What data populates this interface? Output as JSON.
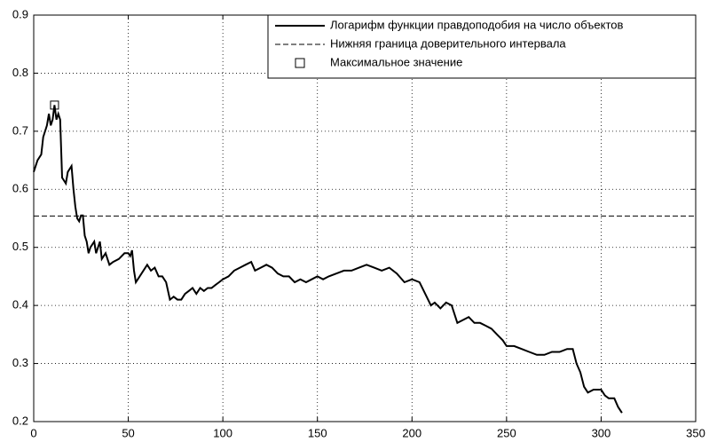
{
  "chart_data": {
    "type": "line",
    "series": [
      {
        "name": "Логарифм функции правдоподобия на число объектов",
        "color": "#000000",
        "style": "solid",
        "x": [
          0,
          2,
          4,
          5,
          7,
          8,
          9,
          10,
          11,
          12,
          13,
          14,
          15,
          17,
          18,
          20,
          21,
          22,
          23,
          24,
          25,
          26,
          27,
          28,
          29,
          30,
          32,
          33,
          35,
          36,
          38,
          40,
          42,
          45,
          48,
          50,
          51,
          52,
          53,
          54,
          56,
          58,
          60,
          62,
          64,
          66,
          68,
          70,
          72,
          74,
          76,
          78,
          80,
          82,
          84,
          86,
          88,
          90,
          92,
          94,
          96,
          98,
          100,
          103,
          106,
          109,
          112,
          115,
          117,
          120,
          123,
          126,
          129,
          132,
          135,
          138,
          141,
          144,
          147,
          150,
          153,
          156,
          160,
          164,
          168,
          172,
          176,
          180,
          184,
          188,
          192,
          196,
          200,
          204,
          207,
          210,
          212,
          215,
          218,
          221,
          224,
          227,
          230,
          233,
          236,
          239,
          242,
          245,
          248,
          250,
          254,
          258,
          262,
          266,
          270,
          274,
          278,
          282,
          285,
          287,
          289,
          291,
          293,
          296,
          300,
          302,
          304,
          307,
          309,
          311
        ],
        "values": [
          0.63,
          0.65,
          0.66,
          0.69,
          0.71,
          0.73,
          0.71,
          0.72,
          0.745,
          0.72,
          0.73,
          0.72,
          0.62,
          0.61,
          0.63,
          0.64,
          0.6,
          0.57,
          0.55,
          0.545,
          0.555,
          0.555,
          0.52,
          0.51,
          0.49,
          0.5,
          0.51,
          0.49,
          0.51,
          0.48,
          0.49,
          0.47,
          0.475,
          0.48,
          0.49,
          0.49,
          0.485,
          0.495,
          0.46,
          0.44,
          0.45,
          0.46,
          0.47,
          0.46,
          0.465,
          0.45,
          0.45,
          0.44,
          0.41,
          0.415,
          0.41,
          0.41,
          0.42,
          0.425,
          0.43,
          0.42,
          0.43,
          0.425,
          0.43,
          0.43,
          0.435,
          0.44,
          0.445,
          0.45,
          0.46,
          0.465,
          0.47,
          0.475,
          0.46,
          0.465,
          0.47,
          0.465,
          0.455,
          0.45,
          0.45,
          0.44,
          0.445,
          0.44,
          0.445,
          0.45,
          0.445,
          0.45,
          0.455,
          0.46,
          0.46,
          0.465,
          0.47,
          0.465,
          0.46,
          0.465,
          0.455,
          0.44,
          0.445,
          0.44,
          0.42,
          0.4,
          0.405,
          0.395,
          0.405,
          0.4,
          0.37,
          0.375,
          0.38,
          0.37,
          0.37,
          0.365,
          0.36,
          0.35,
          0.34,
          0.33,
          0.33,
          0.325,
          0.32,
          0.315,
          0.315,
          0.32,
          0.32,
          0.325,
          0.325,
          0.3,
          0.285,
          0.26,
          0.25,
          0.255,
          0.255,
          0.245,
          0.24,
          0.24,
          0.225,
          0.215
        ]
      },
      {
        "name": "Нижняя граница доверительного интервала",
        "color": "#000000",
        "style": "dashed",
        "x": [
          0,
          350
        ],
        "values": [
          0.554,
          0.554
        ]
      },
      {
        "name": "Максимальное значение",
        "color": "#000000",
        "style": "marker",
        "marker": "square",
        "x": [
          11
        ],
        "values": [
          0.745
        ]
      }
    ],
    "xlim": [
      0,
      350
    ],
    "xticks": [
      0,
      50,
      100,
      150,
      200,
      250,
      300,
      350
    ],
    "ylim": [
      0.2,
      0.9
    ],
    "yticks": [
      0.2,
      0.3,
      0.4,
      0.5,
      0.6,
      0.7,
      0.8,
      0.9
    ],
    "grid": true,
    "legend": "upper right"
  }
}
